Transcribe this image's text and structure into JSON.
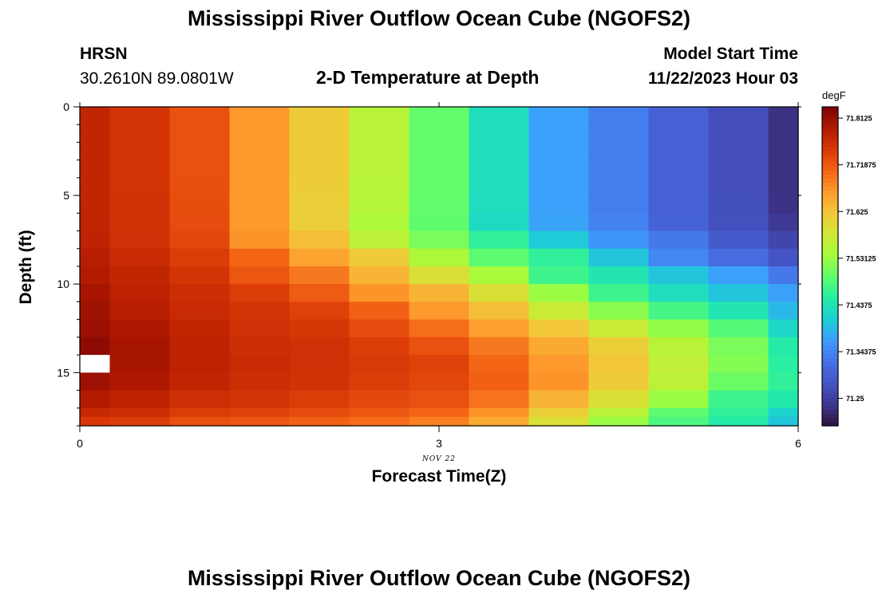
{
  "page": {
    "title": "Mississippi River Outflow Ocean Cube (NGOFS2)",
    "station": "HRSN",
    "coords": "30.2610N  89.0801W",
    "subtitle": "2-D Temperature at Depth",
    "model_label": "Model Start Time",
    "model_time": "11/22/2023 Hour 03",
    "footer_title": "Mississippi River Outflow Ocean Cube (NGOFS2)"
  },
  "colors": {
    "palette": [
      "#30123b",
      "#3e378f",
      "#4454c4",
      "#4671e7",
      "#3e9bfe",
      "#1bcfd4",
      "#24eca6",
      "#61fc6c",
      "#a4fc3c",
      "#d1e834",
      "#f3c63a",
      "#fe9b2d",
      "#f36315",
      "#d93806",
      "#b11901",
      "#7a0403"
    ],
    "missing": "#ffffff"
  },
  "chart_data": {
    "type": "heatmap",
    "title": "2-D Temperature at Depth",
    "xlabel": "Forecast Time(Z)",
    "ylabel": "Depth (ft)",
    "x_date_label": "NOV 22",
    "xlim": [
      0,
      6
    ],
    "ylim": [
      18,
      0
    ],
    "x_ticks": [
      0,
      3,
      6
    ],
    "x_tick_labels": [
      "0",
      "3",
      "6"
    ],
    "y_ticks": [
      0,
      5,
      10,
      15
    ],
    "y_tick_labels": [
      "0",
      "5",
      "10",
      "15"
    ],
    "x_edges": [
      0,
      0.25,
      0.75,
      1.25,
      1.75,
      2.25,
      2.75,
      3.25,
      3.75,
      4.25,
      4.75,
      5.25,
      5.75,
      6
    ],
    "y_edges": [
      0,
      1,
      2,
      3,
      4,
      5,
      6,
      7,
      8,
      9,
      10,
      11,
      12,
      13,
      14,
      15,
      16,
      17,
      17.5,
      18
    ],
    "values": [
      [
        71.775,
        71.755,
        71.725,
        71.665,
        71.615,
        71.555,
        71.495,
        71.43,
        71.37,
        71.335,
        71.3,
        71.272,
        71.232
      ],
      [
        71.775,
        71.755,
        71.725,
        71.665,
        71.615,
        71.555,
        71.495,
        71.43,
        71.37,
        71.335,
        71.3,
        71.272,
        71.232
      ],
      [
        71.775,
        71.755,
        71.725,
        71.665,
        71.615,
        71.555,
        71.495,
        71.43,
        71.37,
        71.335,
        71.3,
        71.272,
        71.232
      ],
      [
        71.775,
        71.755,
        71.725,
        71.665,
        71.615,
        71.555,
        71.495,
        71.43,
        71.37,
        71.335,
        71.3,
        71.272,
        71.232
      ],
      [
        71.775,
        71.757,
        71.727,
        71.665,
        71.613,
        71.553,
        71.495,
        71.43,
        71.37,
        71.335,
        71.3,
        71.272,
        71.232
      ],
      [
        71.775,
        71.758,
        71.728,
        71.665,
        71.612,
        71.552,
        71.494,
        71.43,
        71.37,
        71.335,
        71.3,
        71.273,
        71.233
      ],
      [
        71.777,
        71.759,
        71.73,
        71.666,
        71.612,
        71.545,
        71.492,
        71.425,
        71.372,
        71.34,
        71.302,
        71.275,
        71.24
      ],
      [
        71.778,
        71.76,
        71.735,
        71.67,
        71.63,
        71.56,
        71.51,
        71.46,
        71.405,
        71.36,
        71.33,
        71.29,
        71.26
      ],
      [
        71.785,
        71.768,
        71.745,
        71.705,
        71.655,
        71.615,
        71.545,
        71.49,
        71.46,
        71.4,
        71.345,
        71.315,
        71.28
      ],
      [
        71.79,
        71.775,
        71.755,
        71.72,
        71.69,
        71.64,
        71.59,
        71.54,
        71.47,
        71.44,
        71.4,
        71.37,
        71.33
      ],
      [
        71.8,
        71.78,
        71.765,
        71.745,
        71.715,
        71.67,
        71.64,
        71.59,
        71.53,
        71.47,
        71.43,
        71.4,
        71.37
      ],
      [
        71.807,
        71.785,
        71.768,
        71.755,
        71.74,
        71.71,
        71.665,
        71.63,
        71.57,
        71.52,
        71.475,
        71.44,
        71.39
      ],
      [
        71.81,
        71.795,
        71.775,
        71.76,
        71.752,
        71.73,
        71.7,
        71.66,
        71.62,
        71.57,
        71.525,
        71.485,
        71.42
      ],
      [
        71.82,
        71.8,
        71.78,
        71.765,
        71.76,
        71.745,
        71.725,
        71.69,
        71.65,
        71.61,
        71.555,
        71.51,
        71.45
      ],
      [
        null,
        71.8,
        71.78,
        71.767,
        71.76,
        71.748,
        71.74,
        71.705,
        71.665,
        71.62,
        71.565,
        71.515,
        71.455
      ],
      [
        71.808,
        71.795,
        71.777,
        71.765,
        71.758,
        71.745,
        71.735,
        71.71,
        71.67,
        71.615,
        71.56,
        71.5,
        71.46
      ],
      [
        71.79,
        71.78,
        71.762,
        71.755,
        71.745,
        71.733,
        71.725,
        71.695,
        71.64,
        71.59,
        71.53,
        71.47,
        71.445
      ],
      [
        71.77,
        71.765,
        71.745,
        71.74,
        71.73,
        71.72,
        71.705,
        71.67,
        71.61,
        71.555,
        71.49,
        71.46,
        71.415
      ],
      [
        71.75,
        71.745,
        71.725,
        71.72,
        71.71,
        71.7,
        71.685,
        71.65,
        71.59,
        71.53,
        71.48,
        71.45,
        71.4
      ]
    ],
    "colorbar": {
      "unit": "degF",
      "min": 71.195,
      "max": 71.835,
      "tick_values": [
        71.8125,
        71.71875,
        71.625,
        71.53125,
        71.4375,
        71.34375,
        71.25
      ],
      "tick_labels": [
        "71.8125",
        "71.71875",
        "71.625",
        "71.53125",
        "71.4375",
        "71.34375",
        "71.25"
      ]
    }
  }
}
